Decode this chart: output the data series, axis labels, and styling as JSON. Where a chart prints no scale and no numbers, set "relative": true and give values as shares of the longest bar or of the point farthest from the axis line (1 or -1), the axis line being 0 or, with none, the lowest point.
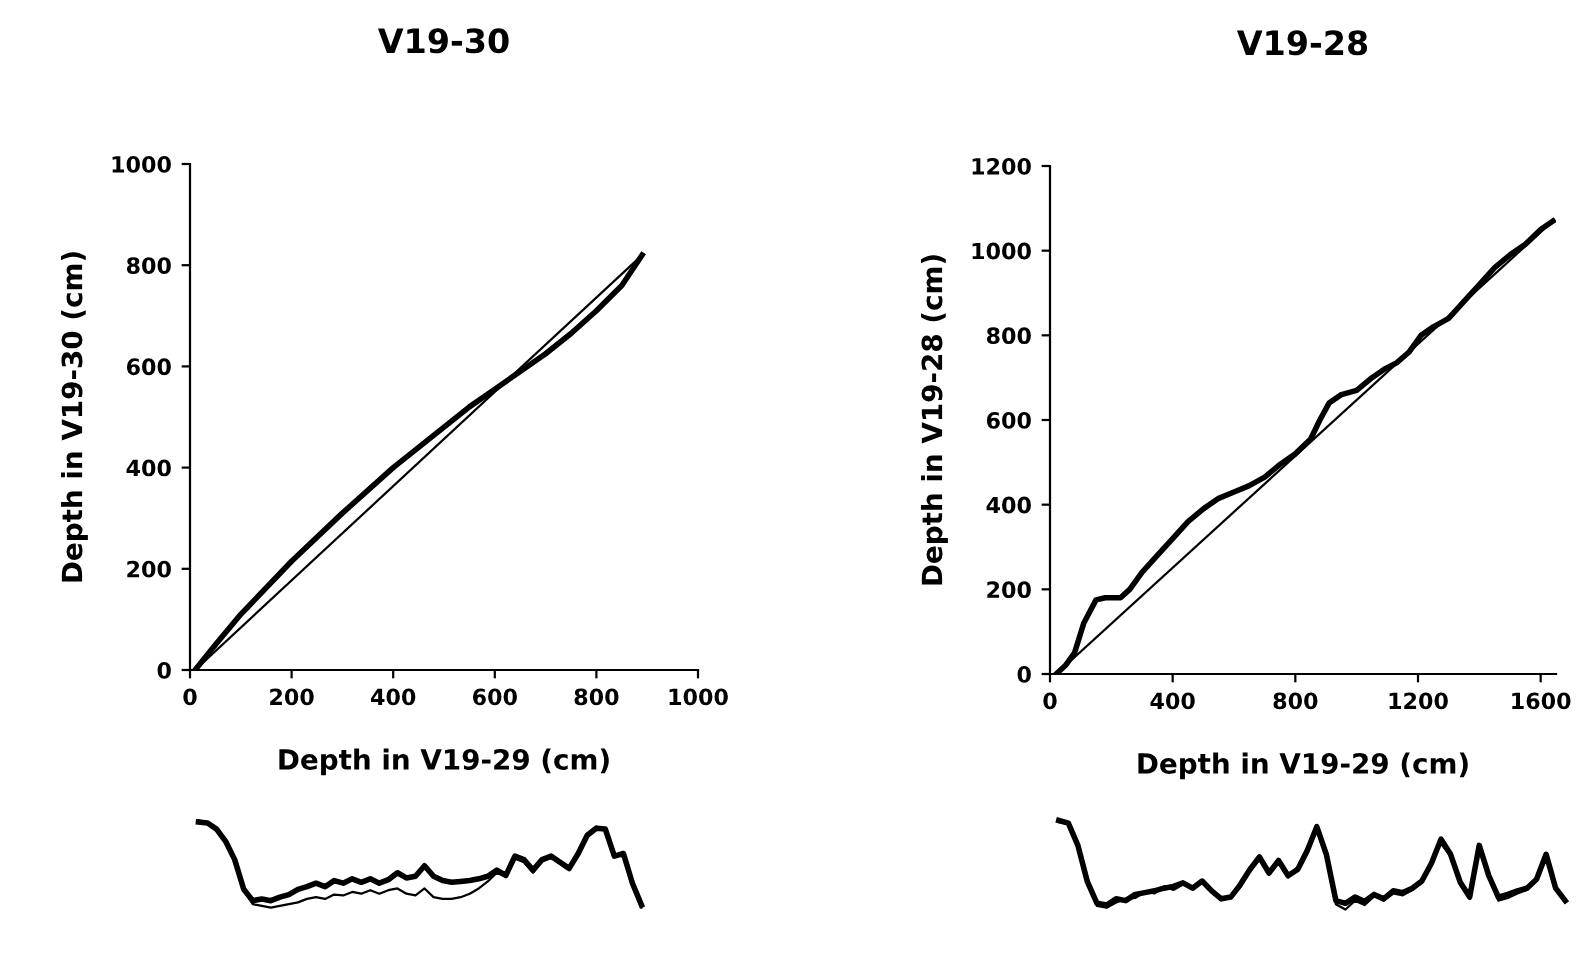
{
  "chart_data": [
    {
      "type": "line",
      "title": "V19-30",
      "xlabel": "Depth in V19-29 (cm)",
      "ylabel": "Depth in V19-30 (cm)",
      "xlim": [
        0,
        1000
      ],
      "ylim": [
        0,
        1000
      ],
      "xticks": [
        0,
        200,
        400,
        600,
        800,
        1000
      ],
      "yticks": [
        0,
        200,
        400,
        600,
        800,
        1000
      ],
      "grid": false,
      "legend": false,
      "series": [
        {
          "color": "#000000",
          "x": [
            10,
            50,
            100,
            200,
            300,
            400,
            500,
            550,
            600,
            650,
            700,
            750,
            800,
            850,
            890
          ],
          "values": [
            0,
            50,
            110,
            215,
            310,
            400,
            480,
            520,
            555,
            590,
            625,
            665,
            710,
            760,
            820
          ]
        },
        {
          "color": "#000000",
          "x": [
            10,
            890
          ],
          "values": [
            0,
            820
          ]
        }
      ]
    },
    {
      "type": "line",
      "title": "V19-28",
      "xlabel": "Depth in V19-29 (cm)",
      "ylabel": "Depth in V19-28 (cm)",
      "xlim": [
        0,
        1650
      ],
      "ylim": [
        0,
        1200
      ],
      "xticks": [
        0,
        400,
        800,
        1200,
        1600
      ],
      "yticks": [
        0,
        200,
        400,
        600,
        800,
        1000,
        1200
      ],
      "grid": false,
      "legend": false,
      "series": [
        {
          "color": "#000000",
          "x": [
            20,
            50,
            80,
            110,
            150,
            180,
            230,
            260,
            300,
            350,
            400,
            450,
            500,
            550,
            600,
            650,
            700,
            750,
            800,
            850,
            880,
            910,
            950,
            1000,
            1050,
            1090,
            1130,
            1170,
            1210,
            1250,
            1300,
            1350,
            1400,
            1450,
            1500,
            1550,
            1600,
            1640
          ],
          "values": [
            0,
            20,
            50,
            120,
            175,
            180,
            180,
            200,
            240,
            280,
            320,
            360,
            390,
            415,
            430,
            445,
            465,
            495,
            520,
            555,
            600,
            640,
            660,
            670,
            700,
            720,
            735,
            760,
            800,
            820,
            840,
            880,
            920,
            960,
            990,
            1015,
            1050,
            1070
          ]
        },
        {
          "color": "#000000",
          "x": [
            20,
            1640
          ],
          "values": [
            0,
            1070
          ]
        }
      ]
    },
    {
      "type": "line",
      "relative": true,
      "grid": false,
      "legend": false,
      "categories": [
        null,
        null,
        null,
        null,
        null,
        null,
        null,
        null,
        null,
        null,
        null,
        null,
        null,
        null,
        null,
        null,
        null,
        null,
        null,
        null,
        null,
        null,
        null,
        null,
        null,
        null,
        null,
        null,
        null,
        null,
        null,
        null,
        null,
        null,
        null,
        null,
        null,
        null,
        null,
        null,
        null,
        null,
        null,
        null,
        null,
        null,
        null,
        null,
        null,
        null
      ],
      "series": [
        {
          "color": "#000000",
          "values": [
            0.98,
            0.97,
            0.9,
            0.76,
            0.55,
            0.21,
            0.08,
            0.1,
            0.08,
            0.12,
            0.15,
            0.21,
            0.24,
            0.28,
            0.24,
            0.31,
            0.28,
            0.33,
            0.29,
            0.33,
            0.28,
            0.32,
            0.4,
            0.34,
            0.36,
            0.48,
            0.36,
            0.31,
            0.29,
            0.3,
            0.31,
            0.33,
            0.36,
            0.43,
            0.37,
            0.59,
            0.55,
            0.43,
            0.55,
            0.59,
            0.52,
            0.45,
            0.62,
            0.83,
            0.91,
            0.9,
            0.59,
            0.62,
            0.28,
            0.03
          ]
        },
        {
          "color": "#000000",
          "values": [
            1.0,
            0.97,
            0.9,
            0.76,
            0.55,
            0.2,
            0.04,
            0.02,
            0.0,
            0.02,
            0.04,
            0.06,
            0.1,
            0.12,
            0.1,
            0.15,
            0.14,
            0.18,
            0.16,
            0.2,
            0.16,
            0.2,
            0.22,
            0.16,
            0.14,
            0.22,
            0.12,
            0.1,
            0.1,
            0.12,
            0.16,
            0.22,
            0.3,
            0.4,
            0.35,
            0.56,
            0.52,
            0.4,
            0.53,
            0.57,
            0.5,
            0.43,
            0.6,
            0.8,
            0.93,
            0.88,
            0.62,
            0.58,
            0.25,
            0.0
          ]
        }
      ]
    },
    {
      "type": "line",
      "relative": true,
      "grid": false,
      "legend": false,
      "categories": [
        null,
        null,
        null,
        null,
        null,
        null,
        null,
        null,
        null,
        null,
        null,
        null,
        null,
        null,
        null,
        null,
        null,
        null,
        null,
        null,
        null,
        null,
        null,
        null,
        null,
        null,
        null,
        null,
        null,
        null,
        null,
        null,
        null,
        null,
        null,
        null,
        null,
        null,
        null,
        null,
        null,
        null,
        null,
        null,
        null,
        null,
        null,
        null,
        null,
        null,
        null,
        null,
        null,
        null
      ],
      "series": [
        {
          "color": "#000000",
          "values": [
            1.0,
            0.97,
            0.72,
            0.31,
            0.07,
            0.05,
            0.12,
            0.1,
            0.17,
            0.19,
            0.21,
            0.24,
            0.26,
            0.3,
            0.24,
            0.32,
            0.21,
            0.12,
            0.14,
            0.28,
            0.45,
            0.59,
            0.41,
            0.55,
            0.38,
            0.45,
            0.66,
            0.93,
            0.62,
            0.1,
            0.07,
            0.14,
            0.09,
            0.17,
            0.12,
            0.21,
            0.19,
            0.24,
            0.32,
            0.52,
            0.79,
            0.62,
            0.31,
            0.14,
            0.72,
            0.38,
            0.14,
            0.17,
            0.21,
            0.24,
            0.34,
            0.62,
            0.24,
            0.1
          ]
        },
        {
          "color": "#000000",
          "values": [
            0.98,
            0.96,
            0.7,
            0.3,
            0.04,
            0.02,
            0.08,
            0.12,
            0.13,
            0.2,
            0.18,
            0.26,
            0.22,
            0.28,
            0.26,
            0.3,
            0.2,
            0.11,
            0.13,
            0.25,
            0.43,
            0.56,
            0.43,
            0.52,
            0.36,
            0.48,
            0.7,
            0.88,
            0.6,
            0.06,
            0.0,
            0.1,
            0.05,
            0.15,
            0.1,
            0.18,
            0.16,
            0.22,
            0.3,
            0.55,
            0.74,
            0.6,
            0.28,
            0.12,
            0.7,
            0.36,
            0.1,
            0.13,
            0.18,
            0.22,
            0.32,
            0.58,
            0.22,
            0.08
          ]
        }
      ]
    }
  ]
}
